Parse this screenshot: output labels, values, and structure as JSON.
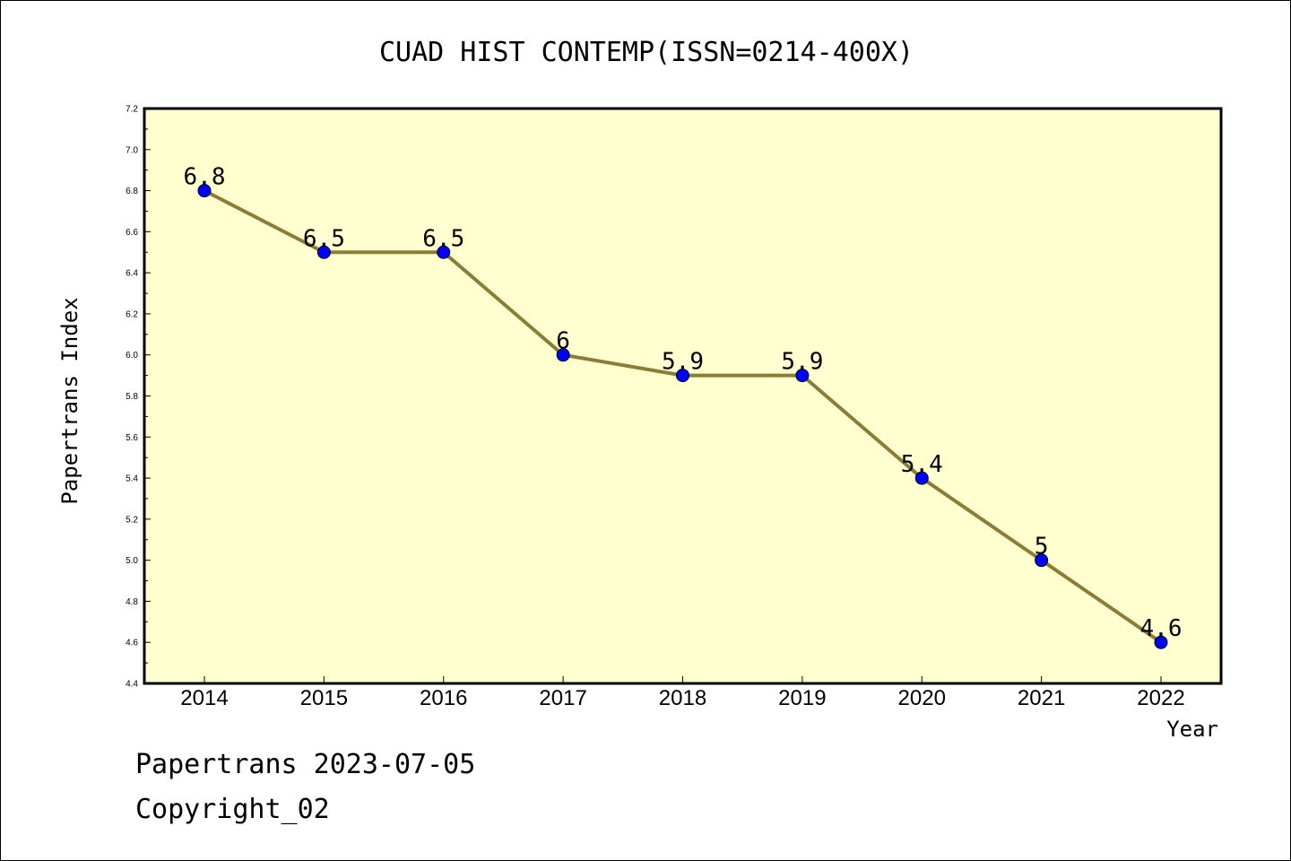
{
  "chart_data": {
    "type": "line",
    "title": "CUAD HIST CONTEMP(ISSN=0214-400X)",
    "xlabel": "Year",
    "ylabel": "Papertrans Index",
    "categories": [
      "2014",
      "2015",
      "2016",
      "2017",
      "2018",
      "2019",
      "2020",
      "2021",
      "2022"
    ],
    "series": [
      {
        "values": [
          6.8,
          6.5,
          6.5,
          6.0,
          5.9,
          5.9,
          5.4,
          5.0,
          4.6
        ]
      }
    ],
    "data_labels": [
      "6.8",
      "6.5",
      "6.5",
      "6",
      "5.9",
      "5.9",
      "5.4",
      "5",
      "4.6"
    ],
    "ylim": [
      4.4,
      7.2
    ],
    "yticks": [
      "4.4",
      "4.6",
      "4.8",
      "5.0",
      "5.2",
      "5.4",
      "5.6",
      "5.8",
      "6.0",
      "6.2",
      "6.4",
      "6.6",
      "6.8",
      "7.0",
      "7.2"
    ],
    "grid": false,
    "colors": {
      "plot_background": "#ffffd0",
      "line": "#8b7d35",
      "marker": "#0000ff"
    }
  },
  "footer": {
    "source": "Papertrans 2023-07-05",
    "copyright": "Copyright_02"
  }
}
